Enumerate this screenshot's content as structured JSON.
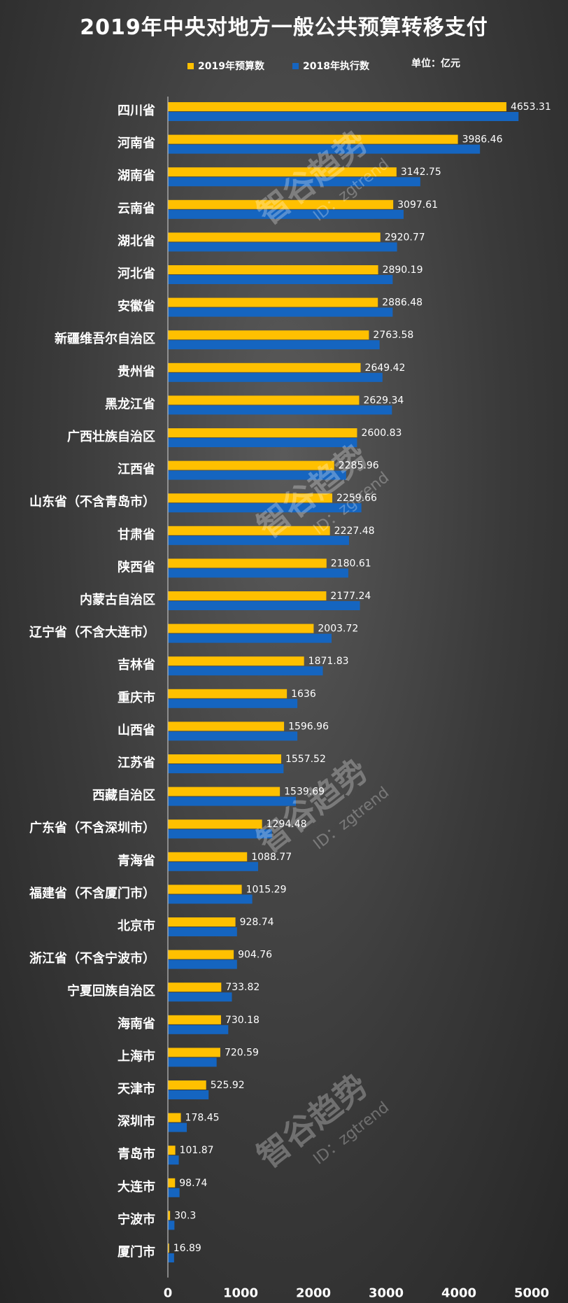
{
  "chart_data": {
    "type": "bar",
    "orientation": "horizontal",
    "title": "2019年中央对地方一般公共预算转移支付",
    "unit": "单位：亿元",
    "xlim": [
      0,
      5000
    ],
    "xticks": [
      0,
      1000,
      2000,
      3000,
      4000,
      5000
    ],
    "legend_position": "top",
    "categories": [
      "四川省",
      "河南省",
      "湖南省",
      "云南省",
      "湖北省",
      "河北省",
      "安徽省",
      "新疆维吾尔自治区",
      "贵州省",
      "黑龙江省",
      "广西壮族自治区",
      "江西省",
      "山东省（不含青岛市）",
      "甘肃省",
      "陕西省",
      "内蒙古自治区",
      "辽宁省（不含大连市）",
      "吉林省",
      "重庆市",
      "山西省",
      "江苏省",
      "西藏自治区",
      "广东省（不含深圳市）",
      "青海省",
      "福建省（不含厦门市）",
      "北京市",
      "浙江省（不含宁波市）",
      "宁夏回族自治区",
      "海南省",
      "上海市",
      "天津市",
      "深圳市",
      "青岛市",
      "大连市",
      "宁波市",
      "厦门市"
    ],
    "series": [
      {
        "name": "2019年预算数",
        "color": "#FFC000",
        "values": [
          4653.31,
          3986.46,
          3142.75,
          3097.61,
          2920.77,
          2890.19,
          2886.48,
          2763.58,
          2649.42,
          2629.34,
          2600.83,
          2285.96,
          2259.66,
          2227.48,
          2180.61,
          2177.24,
          2003.72,
          1871.83,
          1636,
          1596.96,
          1557.52,
          1539.69,
          1294.48,
          1088.77,
          1015.29,
          928.74,
          904.76,
          733.82,
          730.18,
          720.59,
          525.92,
          178.45,
          101.87,
          98.74,
          30.3,
          16.89
        ]
      },
      {
        "name": "2018年执行数",
        "color": "#1565C0",
        "values": [
          4820,
          4290,
          3470,
          3240,
          3150,
          3090,
          3090,
          2910,
          2950,
          3080,
          2600,
          2450,
          2660,
          2490,
          2480,
          2640,
          2250,
          2130,
          1780,
          1780,
          1590,
          1760,
          1430,
          1240,
          1160,
          950,
          950,
          880,
          830,
          670,
          560,
          260,
          150,
          160,
          90,
          85
        ]
      }
    ]
  },
  "watermark": {
    "text": "智谷趋势",
    "sub": "ID：zgtrend"
  }
}
